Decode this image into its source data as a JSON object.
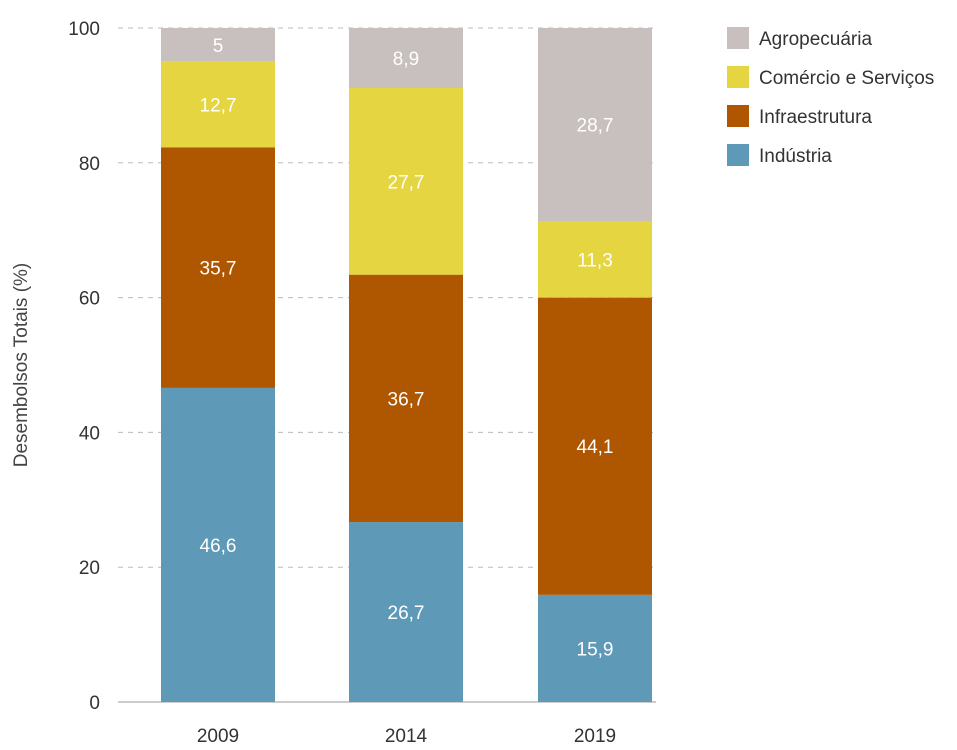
{
  "chart_data": {
    "type": "bar",
    "stacked": true,
    "categories": [
      "2009",
      "2014",
      "2019"
    ],
    "series": [
      {
        "name": "Indústria",
        "color": "#5f99b8",
        "values": [
          46.6,
          26.7,
          15.9
        ],
        "labels": [
          "46,6",
          "26,7",
          "15,9"
        ]
      },
      {
        "name": "Infraestrutura",
        "color": "#ae5600",
        "values": [
          35.7,
          36.7,
          44.1
        ],
        "labels": [
          "35,7",
          "36,7",
          "44,1"
        ]
      },
      {
        "name": "Comércio e Serviços",
        "color": "#e4d541",
        "values": [
          12.7,
          27.7,
          11.3
        ],
        "labels": [
          "12,7",
          "27,7",
          "11,3"
        ]
      },
      {
        "name": "Agropecuária",
        "color": "#c8bfbf",
        "values": [
          5,
          8.9,
          28.7
        ],
        "labels": [
          "5",
          "8,9",
          "28,7"
        ]
      }
    ],
    "legend_order": [
      "Agropecuária",
      "Comércio e Serviços",
      "Infraestrutura",
      "Indústria"
    ],
    "ylabel": "Desembolsos Totais (%)",
    "xlabel": "",
    "ylim": [
      0,
      100
    ],
    "yticks": [
      0,
      20,
      40,
      60,
      80,
      100
    ],
    "grid": true,
    "legend_position": "top-right"
  }
}
